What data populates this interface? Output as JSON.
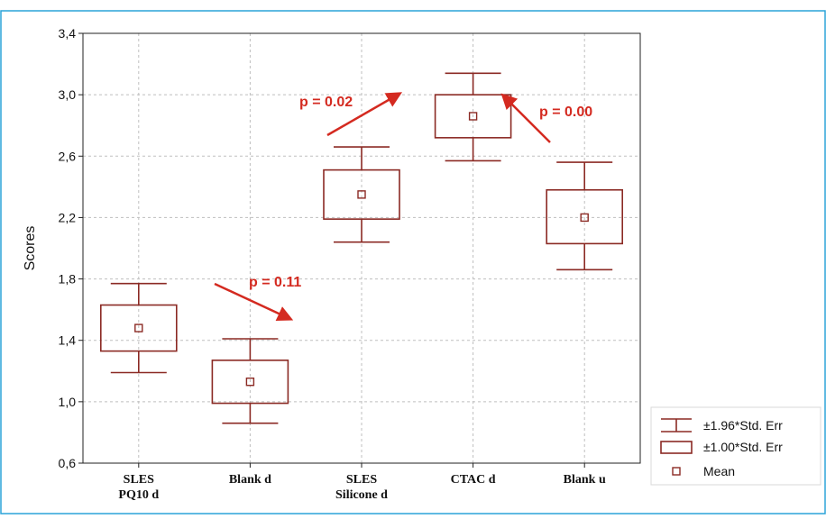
{
  "chart_data": {
    "type": "box",
    "title": "",
    "xlabel": "",
    "ylabel": "Scores",
    "ylim": [
      0.6,
      3.4
    ],
    "yticks": [
      "0,6",
      "1,0",
      "1,4",
      "1,8",
      "2,2",
      "2,6",
      "3,0",
      "3,4"
    ],
    "grid": true,
    "legend_placement": "bottom-right",
    "categories": [
      {
        "label_lines": [
          "SLES",
          "PQ10 d"
        ],
        "mean": 1.48,
        "se1_low": 1.33,
        "se1_high": 1.63,
        "se196_low": 1.19,
        "se196_high": 1.77
      },
      {
        "label_lines": [
          "Blank d"
        ],
        "mean": 1.13,
        "se1_low": 0.99,
        "se1_high": 1.27,
        "se196_low": 0.86,
        "se196_high": 1.41
      },
      {
        "label_lines": [
          "SLES",
          "Silicone d"
        ],
        "mean": 2.35,
        "se1_low": 2.19,
        "se1_high": 2.51,
        "se196_low": 2.04,
        "se196_high": 2.66
      },
      {
        "label_lines": [
          "CTAC d"
        ],
        "mean": 2.86,
        "se1_low": 2.72,
        "se1_high": 3.0,
        "se196_low": 2.57,
        "se196_high": 3.14
      },
      {
        "label_lines": [
          "Blank u"
        ],
        "mean": 2.2,
        "se1_low": 2.03,
        "se1_high": 2.38,
        "se196_low": 1.86,
        "se196_high": 2.56
      }
    ],
    "annotations": [
      {
        "text": "p = 0.11"
      },
      {
        "text": "p = 0.02"
      },
      {
        "text": "p = 0.00"
      }
    ],
    "legend": [
      {
        "symbol": "whisker",
        "label": "±1.96*Std. Err"
      },
      {
        "symbol": "box",
        "label": "±1.00*Std. Err"
      },
      {
        "symbol": "mean",
        "label": "Mean"
      }
    ],
    "colors": {
      "series": "#8b2a24",
      "annotation": "#d42a20",
      "frame": "#2aa3d8",
      "grid": "#bfbfbf"
    }
  }
}
